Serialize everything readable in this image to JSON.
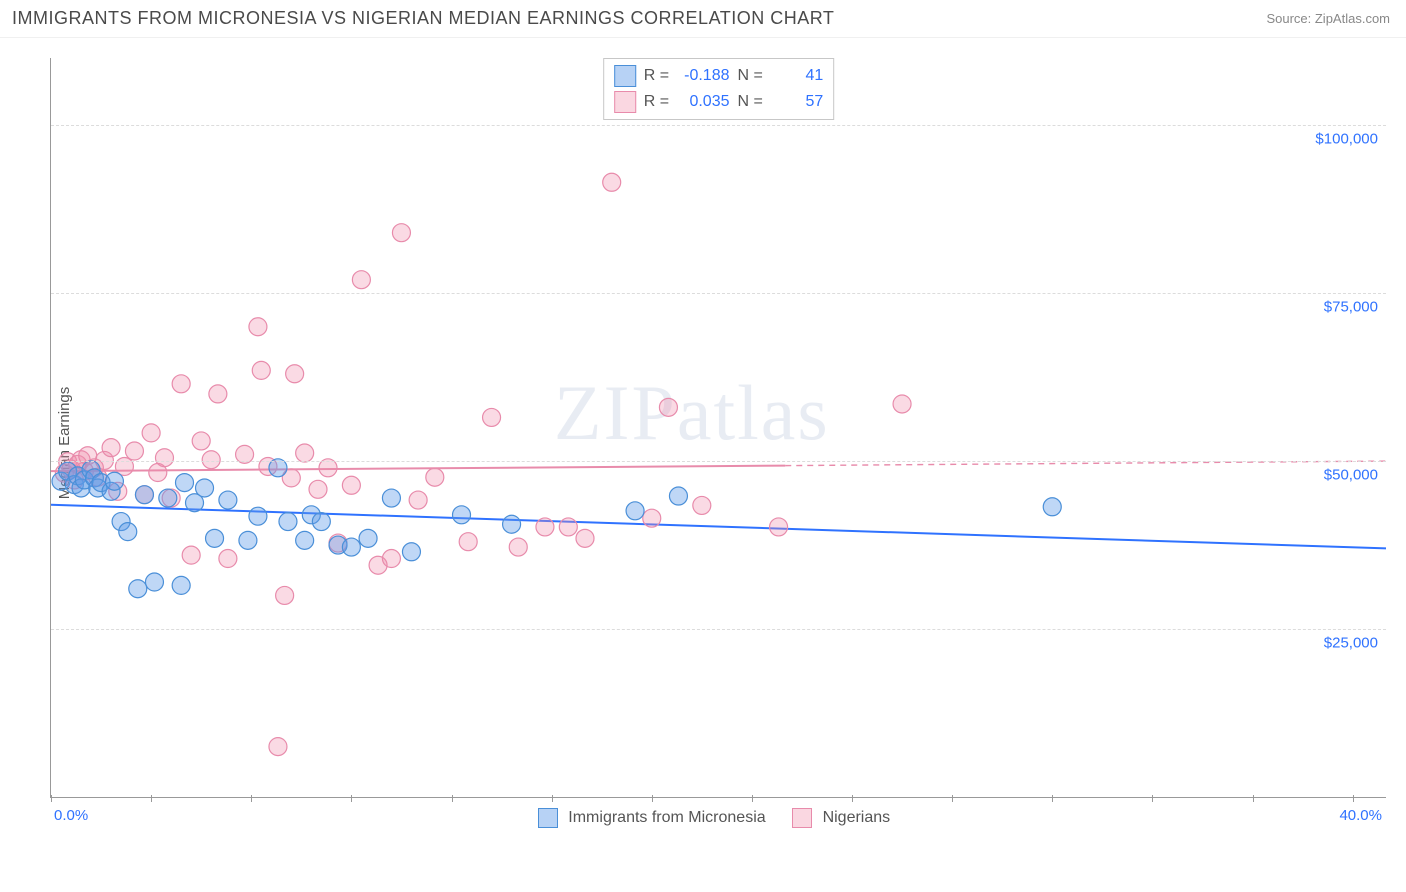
{
  "header": {
    "title": "IMMIGRANTS FROM MICRONESIA VS NIGERIAN MEDIAN EARNINGS CORRELATION CHART",
    "source": "Source: ZipAtlas.com"
  },
  "chart": {
    "type": "scatter",
    "ylabel": "Median Earnings",
    "xlim": [
      0,
      40
    ],
    "ylim": [
      0,
      110000
    ],
    "xtick_labels": {
      "left": "0.0%",
      "right": "40.0%"
    },
    "yticks": [
      25000,
      50000,
      75000,
      100000
    ],
    "ytick_labels": [
      "$25,000",
      "$50,000",
      "$75,000",
      "$100,000"
    ],
    "xtick_marks_pct": [
      0,
      7.5,
      15,
      22.5,
      30,
      37.5,
      45,
      52.5,
      60,
      67.5,
      75,
      82.5,
      90,
      97.5
    ],
    "background_color": "#ffffff",
    "grid_color": "#dcdcdc",
    "axis_color": "#999999",
    "marker_radius": 9,
    "trend_line_width": 2,
    "series_a": {
      "label": "Immigrants from Micronesia",
      "R": "-0.188",
      "N": "41",
      "fill": "rgba(96,155,232,0.40)",
      "stroke": "#4a8fd8",
      "trend_color": "#2f72ff",
      "trend": {
        "y_at_x0": 43500,
        "y_at_x40": 37000
      },
      "points": [
        [
          0.3,
          47000
        ],
        [
          0.5,
          48500
        ],
        [
          0.7,
          46500
        ],
        [
          0.8,
          47800
        ],
        [
          0.9,
          46000
        ],
        [
          1.0,
          47200
        ],
        [
          1.2,
          48700
        ],
        [
          1.3,
          47500
        ],
        [
          1.4,
          46000
        ],
        [
          1.5,
          46800
        ],
        [
          1.8,
          45500
        ],
        [
          1.9,
          47000
        ],
        [
          2.1,
          41000
        ],
        [
          2.3,
          39500
        ],
        [
          2.6,
          31000
        ],
        [
          2.8,
          45000
        ],
        [
          3.1,
          32000
        ],
        [
          3.5,
          44500
        ],
        [
          3.9,
          31500
        ],
        [
          4.0,
          46800
        ],
        [
          4.3,
          43800
        ],
        [
          4.6,
          46000
        ],
        [
          4.9,
          38500
        ],
        [
          5.3,
          44200
        ],
        [
          5.9,
          38200
        ],
        [
          6.2,
          41800
        ],
        [
          6.8,
          49000
        ],
        [
          7.1,
          41000
        ],
        [
          7.6,
          38200
        ],
        [
          7.8,
          42000
        ],
        [
          8.1,
          41000
        ],
        [
          8.6,
          37500
        ],
        [
          9.0,
          37200
        ],
        [
          9.5,
          38500
        ],
        [
          10.2,
          44500
        ],
        [
          10.8,
          36500
        ],
        [
          12.3,
          42000
        ],
        [
          13.8,
          40600
        ],
        [
          17.5,
          42600
        ],
        [
          18.8,
          44800
        ],
        [
          30.0,
          43200
        ]
      ]
    },
    "series_b": {
      "label": "Nigerians",
      "R": "0.035",
      "N": "57",
      "fill": "rgba(240,140,170,0.32)",
      "stroke": "#e88bab",
      "trend_color": "#e88bab",
      "trend_solid_until_x": 22,
      "trend": {
        "y_at_x0": 48500,
        "y_at_x40": 50000
      },
      "points": [
        [
          0.4,
          48200
        ],
        [
          0.5,
          49900
        ],
        [
          0.6,
          48800
        ],
        [
          0.7,
          47200
        ],
        [
          0.8,
          49500
        ],
        [
          0.9,
          50200
        ],
        [
          1.0,
          48500
        ],
        [
          1.1,
          50800
        ],
        [
          1.3,
          49000
        ],
        [
          1.4,
          47600
        ],
        [
          1.6,
          50100
        ],
        [
          1.8,
          52000
        ],
        [
          2.0,
          45500
        ],
        [
          2.2,
          49200
        ],
        [
          2.5,
          51500
        ],
        [
          2.8,
          45000
        ],
        [
          3.0,
          54200
        ],
        [
          3.2,
          48300
        ],
        [
          3.4,
          50500
        ],
        [
          3.6,
          44500
        ],
        [
          3.9,
          61500
        ],
        [
          4.2,
          36000
        ],
        [
          4.5,
          53000
        ],
        [
          4.8,
          50200
        ],
        [
          5.0,
          60000
        ],
        [
          5.3,
          35500
        ],
        [
          5.8,
          51000
        ],
        [
          6.2,
          70000
        ],
        [
          6.3,
          63500
        ],
        [
          6.5,
          49200
        ],
        [
          6.8,
          7500
        ],
        [
          7.0,
          30000
        ],
        [
          7.2,
          47500
        ],
        [
          7.3,
          63000
        ],
        [
          7.6,
          51200
        ],
        [
          8.0,
          45800
        ],
        [
          8.3,
          49000
        ],
        [
          8.6,
          37800
        ],
        [
          9.0,
          46400
        ],
        [
          9.3,
          77000
        ],
        [
          9.8,
          34500
        ],
        [
          10.2,
          35500
        ],
        [
          10.5,
          84000
        ],
        [
          11.0,
          44200
        ],
        [
          11.5,
          47600
        ],
        [
          12.5,
          38000
        ],
        [
          13.2,
          56500
        ],
        [
          14.0,
          37200
        ],
        [
          14.8,
          40200
        ],
        [
          15.5,
          40200
        ],
        [
          16.0,
          38500
        ],
        [
          16.8,
          91500
        ],
        [
          18.0,
          41500
        ],
        [
          18.5,
          58000
        ],
        [
          19.5,
          43400
        ],
        [
          21.8,
          40200
        ],
        [
          25.5,
          58500
        ]
      ]
    },
    "legend": {
      "a": "Immigrants from Micronesia",
      "b": "Nigerians"
    },
    "watermark": "ZIPatlas"
  }
}
